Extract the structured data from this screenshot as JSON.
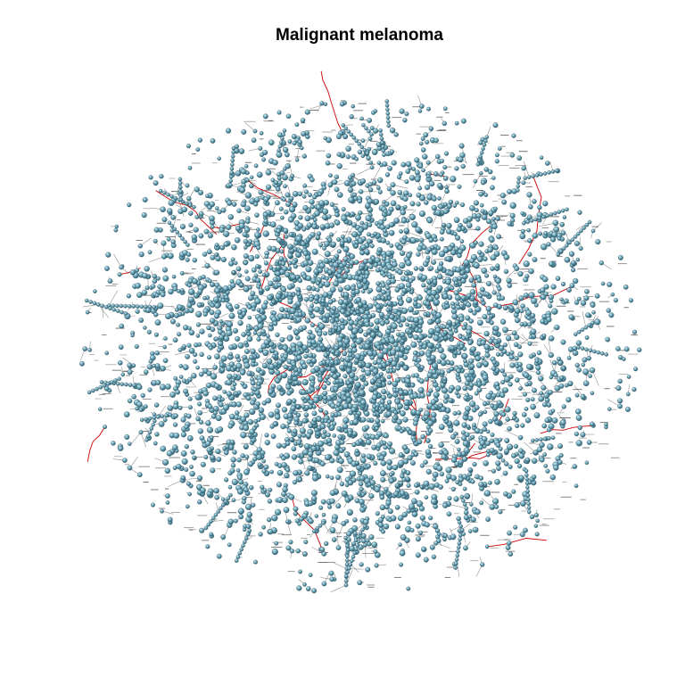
{
  "title": "Malignant melanoma",
  "colors": {
    "node_fill": "#6fa6b8",
    "node_highlight": "#c8e6f0",
    "node_outline": "#2f4f5a",
    "edge_highlight": "#cc0000",
    "edge_default": "#3a3a3a",
    "label_text": "#333333",
    "background": "#ffffff"
  },
  "network": {
    "layout": "force-directed",
    "node_shape": "sphere",
    "edges_highlighted": true
  }
}
